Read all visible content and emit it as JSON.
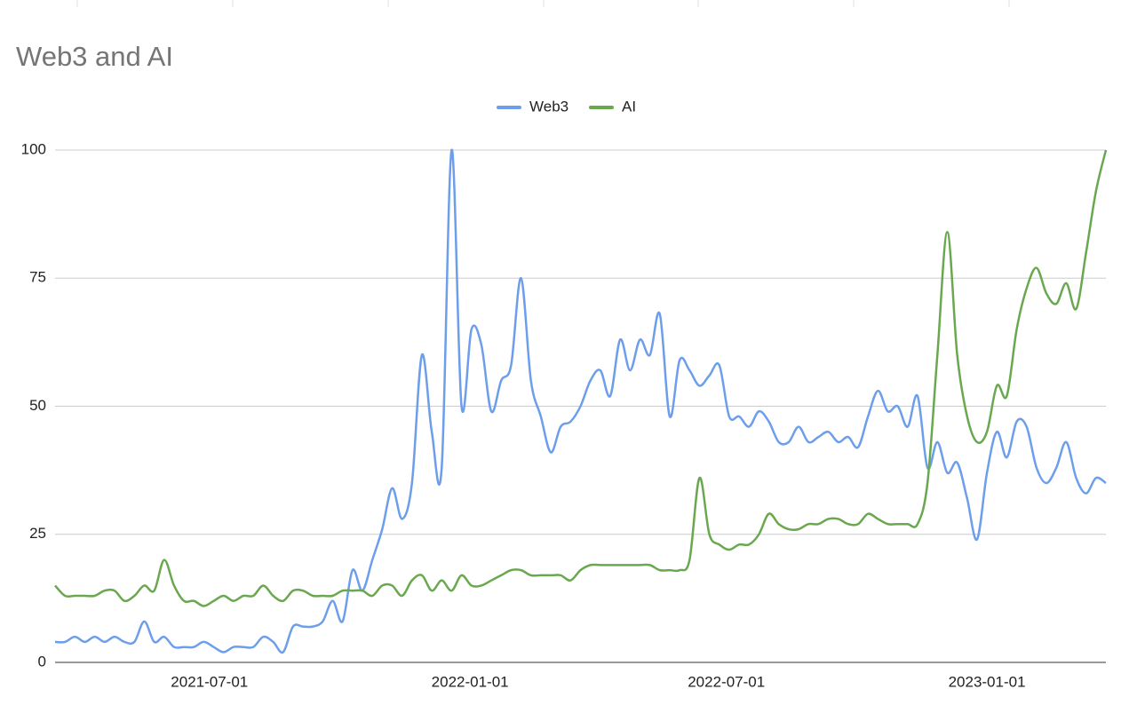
{
  "chart_data": {
    "type": "line",
    "title": "Web3 and AI",
    "legend": "top",
    "grid": true,
    "smooth": true,
    "x": [
      "2021-03-14",
      "2021-03-21",
      "2021-03-28",
      "2021-04-04",
      "2021-04-11",
      "2021-04-18",
      "2021-04-25",
      "2021-05-02",
      "2021-05-09",
      "2021-05-16",
      "2021-05-23",
      "2021-05-30",
      "2021-06-06",
      "2021-06-13",
      "2021-06-20",
      "2021-06-27",
      "2021-07-04",
      "2021-07-11",
      "2021-07-18",
      "2021-07-25",
      "2021-08-01",
      "2021-08-08",
      "2021-08-15",
      "2021-08-22",
      "2021-08-29",
      "2021-09-05",
      "2021-09-12",
      "2021-09-19",
      "2021-09-26",
      "2021-10-03",
      "2021-10-10",
      "2021-10-17",
      "2021-10-24",
      "2021-10-31",
      "2021-11-07",
      "2021-11-14",
      "2021-11-21",
      "2021-11-28",
      "2021-12-05",
      "2021-12-12",
      "2021-12-19",
      "2021-12-26",
      "2022-01-02",
      "2022-01-09",
      "2022-01-16",
      "2022-01-23",
      "2022-01-30",
      "2022-02-06",
      "2022-02-13",
      "2022-02-20",
      "2022-02-27",
      "2022-03-06",
      "2022-03-13",
      "2022-03-20",
      "2022-03-27",
      "2022-04-03",
      "2022-04-10",
      "2022-04-17",
      "2022-04-24",
      "2022-05-01",
      "2022-05-08",
      "2022-05-15",
      "2022-05-22",
      "2022-05-29",
      "2022-06-05",
      "2022-06-12",
      "2022-06-19",
      "2022-06-26",
      "2022-07-03",
      "2022-07-10",
      "2022-07-17",
      "2022-07-24",
      "2022-07-31",
      "2022-08-07",
      "2022-08-14",
      "2022-08-21",
      "2022-08-28",
      "2022-09-04",
      "2022-09-11",
      "2022-09-18",
      "2022-09-25",
      "2022-10-02",
      "2022-10-09",
      "2022-10-16",
      "2022-10-23",
      "2022-10-30",
      "2022-11-06",
      "2022-11-13",
      "2022-11-20",
      "2022-11-27",
      "2022-12-04",
      "2022-12-11",
      "2022-12-18",
      "2022-12-25",
      "2023-01-01",
      "2023-01-08",
      "2023-01-15",
      "2023-01-22",
      "2023-01-29",
      "2023-02-05",
      "2023-02-12",
      "2023-02-19",
      "2023-02-26",
      "2023-03-05",
      "2023-03-12",
      "2023-03-19",
      "2023-03-26"
    ],
    "series": [
      {
        "name": "Web3",
        "color": "#6d9eeb",
        "values": [
          4,
          4,
          5,
          4,
          5,
          4,
          5,
          4,
          4,
          8,
          4,
          5,
          3,
          3,
          3,
          4,
          3,
          2,
          3,
          3,
          3,
          5,
          4,
          2,
          7,
          7,
          7,
          8,
          12,
          8,
          18,
          14,
          20,
          26,
          34,
          28,
          35,
          60,
          45,
          38,
          100,
          50,
          65,
          62,
          49,
          55,
          58,
          75,
          55,
          48,
          41,
          46,
          47,
          50,
          55,
          57,
          52,
          63,
          57,
          63,
          60,
          68,
          48,
          59,
          57,
          54,
          56,
          58,
          48,
          48,
          46,
          49,
          47,
          43,
          43,
          46,
          43,
          44,
          45,
          43,
          44,
          42,
          48,
          53,
          49,
          50,
          46,
          52,
          38,
          43,
          37,
          39,
          32,
          24,
          37,
          45,
          40,
          47,
          46,
          38,
          35,
          38,
          43,
          36,
          33,
          36,
          35
        ]
      },
      {
        "name": "AI",
        "color": "#6aa84f",
        "values": [
          15,
          13,
          13,
          13,
          13,
          14,
          14,
          12,
          13,
          15,
          14,
          20,
          15,
          12,
          12,
          11,
          12,
          13,
          12,
          13,
          13,
          15,
          13,
          12,
          14,
          14,
          13,
          13,
          13,
          14,
          14,
          14,
          13,
          15,
          15,
          13,
          16,
          17,
          14,
          16,
          14,
          17,
          15,
          15,
          16,
          17,
          18,
          18,
          17,
          17,
          17,
          17,
          16,
          18,
          19,
          19,
          19,
          19,
          19,
          19,
          19,
          18,
          18,
          18,
          20,
          36,
          25,
          23,
          22,
          23,
          23,
          25,
          29,
          27,
          26,
          26,
          27,
          27,
          28,
          28,
          27,
          27,
          29,
          28,
          27,
          27,
          27,
          27,
          35,
          60,
          84,
          60,
          48,
          43,
          45,
          54,
          52,
          65,
          73,
          77,
          72,
          70,
          74,
          69,
          80,
          92,
          100
        ]
      }
    ],
    "xlim": [
      "2021-03-14",
      "2023-03-26"
    ],
    "xticks": [
      "2021-07-01",
      "2022-01-01",
      "2022-07-01",
      "2023-01-01"
    ],
    "ylim": [
      0,
      100
    ],
    "yticks": [
      0,
      25,
      50,
      75,
      100
    ]
  }
}
